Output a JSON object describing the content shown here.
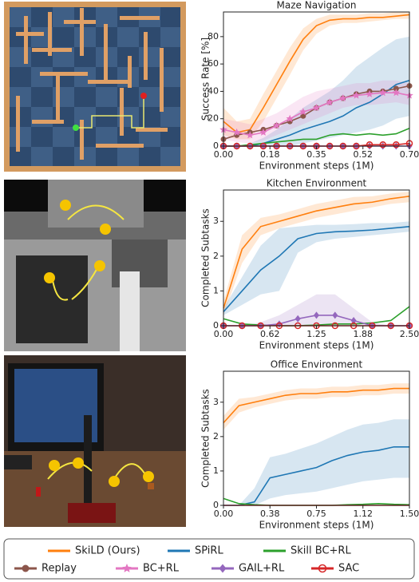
{
  "chart_data": [
    {
      "type": "line",
      "title": "Maze Navigation",
      "x_label": "Environment steps (1M)",
      "y_label": "Success Rate [%]",
      "x": [
        0,
        0.05,
        0.1,
        0.15,
        0.2,
        0.25,
        0.3,
        0.35,
        0.4,
        0.45,
        0.5,
        0.55,
        0.6,
        0.65,
        0.7
      ],
      "xlim": [
        0,
        0.7
      ],
      "xticks": [
        {
          "value": 0,
          "label": "0.00"
        },
        {
          "value": 0.175,
          "label": "0.18"
        },
        {
          "value": 0.35,
          "label": "0.35"
        },
        {
          "value": 0.525,
          "label": "0.52"
        },
        {
          "value": 0.7,
          "label": "0.70"
        }
      ],
      "ylim": [
        0,
        98
      ],
      "yticks": [
        0,
        20,
        40,
        60,
        80
      ],
      "series": [
        {
          "name": "SkiLD (Ours)",
          "color": "#ff7f0e",
          "values": [
            18,
            10,
            12,
            28,
            45,
            62,
            78,
            88,
            92,
            93,
            93,
            94,
            94,
            95,
            96
          ],
          "lower": [
            8,
            5,
            5,
            18,
            35,
            52,
            70,
            82,
            88,
            90,
            90,
            91,
            92,
            93,
            93
          ],
          "upper": [
            28,
            18,
            20,
            38,
            55,
            72,
            86,
            93,
            96,
            96,
            96,
            97,
            97,
            98,
            98
          ]
        },
        {
          "name": "SPiRL",
          "color": "#1f77b4",
          "values": [
            0,
            0,
            0,
            2,
            5,
            8,
            12,
            15,
            18,
            22,
            28,
            32,
            38,
            45,
            48
          ],
          "lower": [
            0,
            0,
            0,
            0,
            0,
            0,
            2,
            4,
            6,
            8,
            10,
            12,
            15,
            20,
            22
          ],
          "upper": [
            0,
            0,
            2,
            6,
            12,
            20,
            28,
            34,
            40,
            48,
            58,
            65,
            72,
            78,
            80
          ]
        },
        {
          "name": "Skill BC+RL",
          "color": "#2ca02c",
          "values": [
            0,
            0,
            1,
            2,
            3,
            4,
            5,
            5,
            8,
            9,
            8,
            9,
            8,
            9,
            13
          ]
        },
        {
          "name": "Replay",
          "color": "#8c564b",
          "marker": "circle",
          "values": [
            5,
            8,
            10,
            12,
            15,
            18,
            22,
            28,
            32,
            35,
            38,
            40,
            40,
            42,
            44
          ]
        },
        {
          "name": "BC+RL",
          "color": "#e377c2",
          "marker": "star",
          "values": [
            12,
            10,
            8,
            10,
            15,
            20,
            25,
            28,
            32,
            35,
            37,
            38,
            39,
            39,
            37
          ],
          "lower": [
            5,
            3,
            2,
            4,
            8,
            12,
            16,
            20,
            24,
            28,
            30,
            30,
            31,
            32,
            30
          ],
          "upper": [
            20,
            18,
            16,
            20,
            24,
            30,
            36,
            40,
            42,
            44,
            46,
            46,
            48,
            48,
            46
          ]
        },
        {
          "name": "GAIL+RL",
          "color": "#9467bd",
          "marker": "diamond",
          "values": [
            0,
            0,
            0,
            0,
            0,
            0,
            0,
            0,
            0,
            0,
            0,
            0,
            0,
            0,
            0
          ]
        },
        {
          "name": "SAC",
          "color": "#d62728",
          "marker": "open-circle",
          "values": [
            0,
            0,
            0,
            0,
            0,
            0,
            0,
            0,
            0,
            0,
            0,
            1,
            1,
            1,
            2
          ]
        }
      ]
    },
    {
      "type": "line",
      "title": "Kitchen Environment",
      "x_label": "Environment steps (1M)",
      "y_label": "Completed Subtasks",
      "x": [
        0,
        0.25,
        0.5,
        0.75,
        1,
        1.25,
        1.5,
        1.75,
        2,
        2.25,
        2.5
      ],
      "xlim": [
        0,
        2.5
      ],
      "xticks": [
        {
          "value": 0,
          "label": "0.00"
        },
        {
          "value": 0.625,
          "label": "0.62"
        },
        {
          "value": 1.25,
          "label": "1.25"
        },
        {
          "value": 1.875,
          "label": "1.88"
        },
        {
          "value": 2.5,
          "label": "2.50"
        }
      ],
      "ylim": [
        0,
        3.9
      ],
      "yticks": [
        0,
        1,
        2,
        3
      ],
      "series": [
        {
          "name": "SkiLD (Ours)",
          "color": "#ff7f0e",
          "values": [
            0.5,
            2.2,
            2.85,
            3.0,
            3.15,
            3.3,
            3.4,
            3.5,
            3.55,
            3.65,
            3.72
          ],
          "lower": [
            0.3,
            1.8,
            2.6,
            2.8,
            2.95,
            3.1,
            3.2,
            3.3,
            3.4,
            3.5,
            3.55
          ],
          "upper": [
            0.7,
            2.6,
            3.1,
            3.2,
            3.35,
            3.5,
            3.6,
            3.7,
            3.72,
            3.8,
            3.85
          ]
        },
        {
          "name": "SPiRL",
          "color": "#1f77b4",
          "values": [
            0.4,
            1.0,
            1.6,
            2.0,
            2.5,
            2.65,
            2.7,
            2.72,
            2.75,
            2.8,
            2.85
          ],
          "lower": [
            0.3,
            0.6,
            0.9,
            1.0,
            2.1,
            2.4,
            2.5,
            2.55,
            2.6,
            2.65,
            2.7
          ],
          "upper": [
            0.5,
            1.4,
            2.3,
            2.8,
            2.85,
            2.9,
            2.9,
            2.92,
            2.95,
            2.95,
            3.0
          ]
        },
        {
          "name": "Skill BC+RL",
          "color": "#2ca02c",
          "values": [
            0.2,
            0.05,
            0.02,
            0,
            0,
            0.02,
            0.05,
            0.05,
            0.08,
            0.15,
            0.55
          ]
        },
        {
          "name": "GAIL+RL",
          "color": "#9467bd",
          "marker": "diamond",
          "values": [
            0,
            0,
            0,
            0.05,
            0.2,
            0.3,
            0.3,
            0.15,
            0,
            0,
            0
          ],
          "lower": [
            0,
            0,
            0,
            0,
            0,
            0,
            0,
            0,
            0,
            0,
            0
          ],
          "upper": [
            0,
            0,
            0.1,
            0.3,
            0.6,
            0.9,
            0.9,
            0.5,
            0.1,
            0,
            0
          ]
        },
        {
          "name": "SAC",
          "color": "#d62728",
          "marker": "open-circle",
          "values": [
            0,
            0,
            0,
            0,
            0,
            0,
            0,
            0,
            0,
            0,
            0
          ]
        }
      ]
    },
    {
      "type": "line",
      "title": "Office Environment",
      "x_label": "Environment steps (1M)",
      "y_label": "Completed Subtasks",
      "x": [
        0,
        0.125,
        0.25,
        0.375,
        0.5,
        0.625,
        0.75,
        0.875,
        1,
        1.125,
        1.25,
        1.375,
        1.5
      ],
      "xlim": [
        0,
        1.5
      ],
      "xticks": [
        {
          "value": 0,
          "label": "0.00"
        },
        {
          "value": 0.375,
          "label": "0.38"
        },
        {
          "value": 0.75,
          "label": "0.75"
        },
        {
          "value": 1.125,
          "label": "1.12"
        },
        {
          "value": 1.5,
          "label": "1.50"
        }
      ],
      "ylim": [
        0,
        3.9
      ],
      "yticks": [
        0,
        1,
        2,
        3
      ],
      "series": [
        {
          "name": "SkiLD (Ours)",
          "color": "#ff7f0e",
          "values": [
            2.4,
            2.9,
            3.0,
            3.1,
            3.2,
            3.25,
            3.25,
            3.3,
            3.3,
            3.35,
            3.35,
            3.4,
            3.4
          ],
          "lower": [
            2.2,
            2.7,
            2.85,
            2.95,
            3.05,
            3.1,
            3.1,
            3.15,
            3.15,
            3.2,
            3.2,
            3.25,
            3.25
          ],
          "upper": [
            2.6,
            3.1,
            3.15,
            3.25,
            3.35,
            3.4,
            3.4,
            3.45,
            3.45,
            3.5,
            3.5,
            3.55,
            3.55
          ]
        },
        {
          "name": "SPiRL",
          "color": "#1f77b4",
          "values": [
            0,
            0,
            0.1,
            0.8,
            0.9,
            1.0,
            1.1,
            1.3,
            1.45,
            1.55,
            1.6,
            1.7,
            1.7
          ],
          "lower": [
            0,
            0,
            0,
            0.2,
            0.3,
            0.35,
            0.4,
            0.5,
            0.6,
            0.7,
            0.75,
            0.8,
            0.8
          ],
          "upper": [
            0,
            0,
            0.5,
            1.4,
            1.5,
            1.65,
            1.8,
            2.0,
            2.2,
            2.35,
            2.4,
            2.5,
            2.5
          ]
        },
        {
          "name": "Skill BC+RL",
          "color": "#2ca02c",
          "values": [
            0.2,
            0.05,
            0.02,
            0,
            0,
            0,
            0,
            0,
            0.02,
            0.03,
            0.05,
            0.03,
            0.02
          ]
        },
        {
          "name": "SAC",
          "color": "#d62728",
          "values": [
            0,
            0,
            0,
            0,
            0,
            0,
            0,
            0,
            0,
            0,
            0,
            0,
            0
          ]
        }
      ]
    }
  ]
}
